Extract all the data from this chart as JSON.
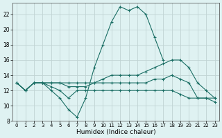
{
  "xlabel": "Humidex (Indice chaleur)",
  "x": [
    0,
    1,
    2,
    3,
    4,
    5,
    6,
    7,
    8,
    9,
    10,
    11,
    12,
    13,
    14,
    15,
    16,
    17,
    18,
    19,
    20,
    21,
    22,
    23
  ],
  "line1": [
    13,
    12,
    13,
    13,
    12,
    11,
    9.5,
    8.5,
    11,
    15,
    18,
    21,
    23,
    22.5,
    23,
    22,
    19,
    16,
    null,
    null,
    null,
    null,
    null,
    null
  ],
  "line2": [
    13,
    12,
    13,
    13,
    13,
    13,
    13,
    13,
    13,
    13,
    13.5,
    14,
    14,
    14,
    14,
    14.5,
    15,
    15.5,
    16,
    16,
    15,
    13,
    12,
    11
  ],
  "line3": [
    13,
    12,
    13,
    13,
    13,
    13,
    12.5,
    12.5,
    12.5,
    13,
    13,
    13,
    13,
    13,
    13,
    13,
    13.5,
    13.5,
    14,
    13.5,
    13,
    11,
    11,
    10.5
  ],
  "line4": [
    13,
    12,
    13,
    13,
    12.5,
    12,
    11,
    12,
    12,
    12,
    12,
    12,
    12,
    12,
    12,
    12,
    12,
    12,
    12,
    11.5,
    11,
    11,
    11,
    11
  ],
  "bg_color": "#dff2f2",
  "grid_color": "#c0d4d4",
  "line_color": "#1a6e64",
  "ylim": [
    8,
    23.5
  ],
  "yticks": [
    8,
    10,
    12,
    14,
    16,
    18,
    20,
    22
  ],
  "xticks": [
    0,
    1,
    2,
    3,
    4,
    5,
    6,
    7,
    8,
    9,
    10,
    11,
    12,
    13,
    14,
    15,
    16,
    17,
    18,
    19,
    20,
    21,
    22,
    23
  ]
}
